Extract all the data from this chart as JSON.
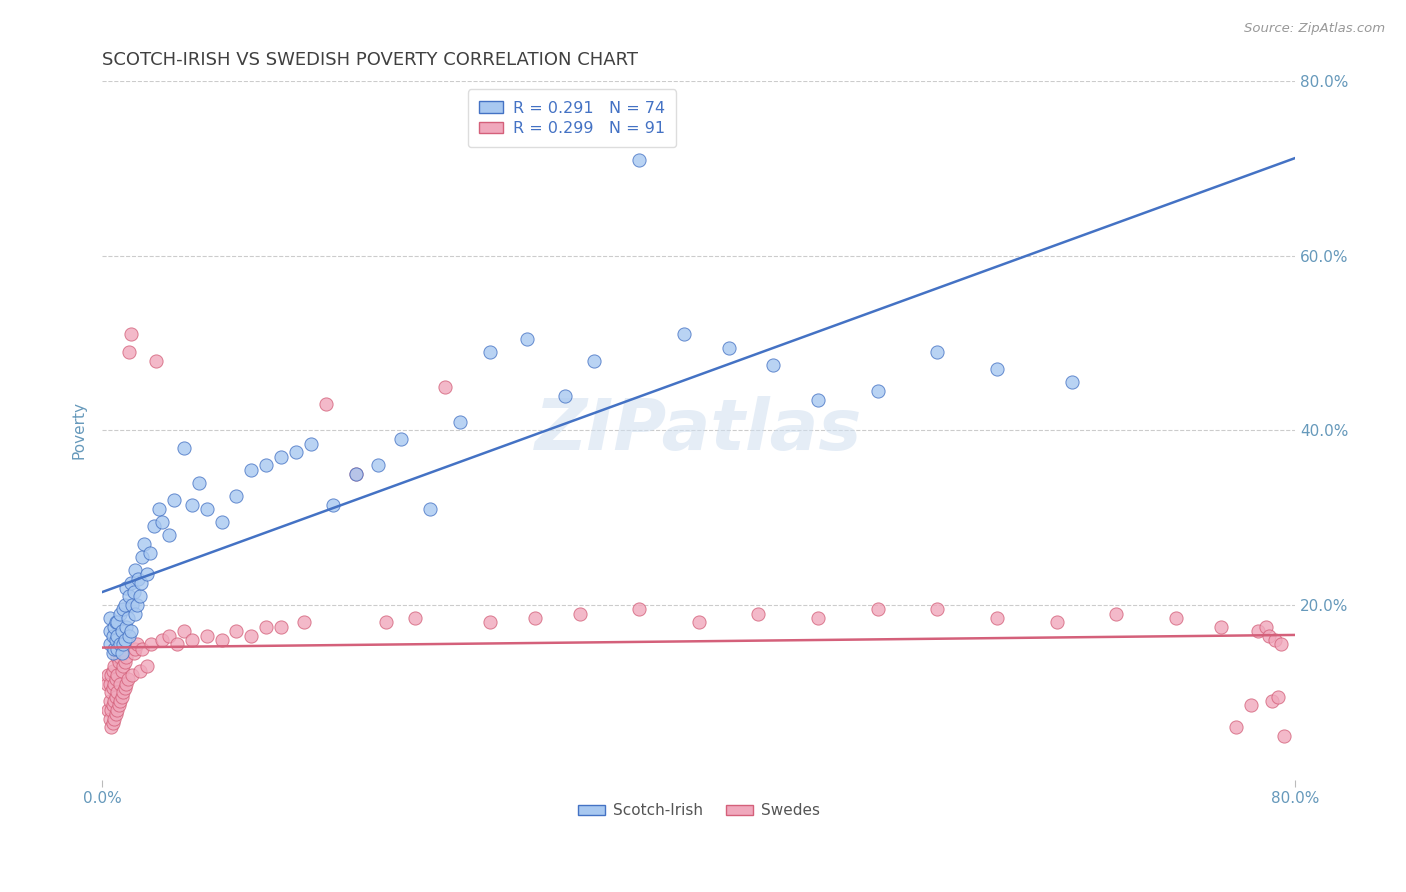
{
  "title": "SCOTCH-IRISH VS SWEDISH POVERTY CORRELATION CHART",
  "source_text": "Source: ZipAtlas.com",
  "ylabel": "Poverty",
  "xlim": [
    0.0,
    0.8
  ],
  "ylim": [
    0.0,
    0.8
  ],
  "ytick_positions": [
    0.2,
    0.4,
    0.6,
    0.8
  ],
  "legend_scotch_irish": "Scotch-Irish",
  "legend_swedes": "Swedes",
  "scotch_irish_color": "#a8c8f0",
  "swedish_color": "#f0a8bc",
  "scotch_irish_line_color": "#4472c4",
  "swedish_line_color": "#d4607a",
  "R_scotch": 0.291,
  "N_scotch": 74,
  "R_swedish": 0.299,
  "N_swedish": 91,
  "background_color": "#ffffff",
  "grid_color": "#cccccc",
  "title_color": "#404040",
  "axis_label_color": "#6699bb",
  "legend_text_color": "#4472c4",
  "scotch_irish_x": [
    0.005,
    0.005,
    0.005,
    0.007,
    0.007,
    0.008,
    0.008,
    0.009,
    0.009,
    0.01,
    0.01,
    0.01,
    0.012,
    0.012,
    0.013,
    0.013,
    0.014,
    0.014,
    0.015,
    0.015,
    0.016,
    0.016,
    0.017,
    0.018,
    0.018,
    0.019,
    0.019,
    0.02,
    0.021,
    0.022,
    0.022,
    0.023,
    0.024,
    0.025,
    0.026,
    0.027,
    0.028,
    0.03,
    0.032,
    0.035,
    0.038,
    0.04,
    0.045,
    0.048,
    0.055,
    0.06,
    0.065,
    0.07,
    0.08,
    0.09,
    0.1,
    0.11,
    0.12,
    0.13,
    0.14,
    0.155,
    0.17,
    0.185,
    0.2,
    0.22,
    0.24,
    0.26,
    0.285,
    0.31,
    0.33,
    0.36,
    0.39,
    0.42,
    0.45,
    0.48,
    0.52,
    0.56,
    0.6,
    0.65
  ],
  "scotch_irish_y": [
    0.155,
    0.17,
    0.185,
    0.145,
    0.165,
    0.15,
    0.175,
    0.16,
    0.18,
    0.15,
    0.165,
    0.18,
    0.155,
    0.19,
    0.145,
    0.17,
    0.155,
    0.195,
    0.16,
    0.2,
    0.175,
    0.22,
    0.185,
    0.165,
    0.21,
    0.17,
    0.225,
    0.2,
    0.215,
    0.19,
    0.24,
    0.2,
    0.23,
    0.21,
    0.225,
    0.255,
    0.27,
    0.235,
    0.26,
    0.29,
    0.31,
    0.295,
    0.28,
    0.32,
    0.38,
    0.315,
    0.34,
    0.31,
    0.295,
    0.325,
    0.355,
    0.36,
    0.37,
    0.375,
    0.385,
    0.315,
    0.35,
    0.36,
    0.39,
    0.31,
    0.41,
    0.49,
    0.505,
    0.44,
    0.48,
    0.71,
    0.51,
    0.495,
    0.475,
    0.435,
    0.445,
    0.49,
    0.47,
    0.455
  ],
  "swedish_x": [
    0.003,
    0.004,
    0.004,
    0.005,
    0.005,
    0.005,
    0.006,
    0.006,
    0.006,
    0.006,
    0.007,
    0.007,
    0.007,
    0.007,
    0.008,
    0.008,
    0.008,
    0.008,
    0.009,
    0.009,
    0.009,
    0.01,
    0.01,
    0.01,
    0.01,
    0.011,
    0.011,
    0.012,
    0.012,
    0.012,
    0.013,
    0.013,
    0.014,
    0.014,
    0.015,
    0.015,
    0.016,
    0.016,
    0.017,
    0.018,
    0.019,
    0.02,
    0.021,
    0.022,
    0.023,
    0.025,
    0.027,
    0.03,
    0.033,
    0.036,
    0.04,
    0.045,
    0.05,
    0.055,
    0.06,
    0.07,
    0.08,
    0.09,
    0.1,
    0.11,
    0.12,
    0.135,
    0.15,
    0.17,
    0.19,
    0.21,
    0.23,
    0.26,
    0.29,
    0.32,
    0.36,
    0.4,
    0.44,
    0.48,
    0.52,
    0.56,
    0.6,
    0.64,
    0.68,
    0.72,
    0.75,
    0.76,
    0.77,
    0.775,
    0.78,
    0.782,
    0.784,
    0.786,
    0.788,
    0.79,
    0.792
  ],
  "swedish_y": [
    0.11,
    0.08,
    0.12,
    0.07,
    0.09,
    0.11,
    0.06,
    0.08,
    0.1,
    0.12,
    0.065,
    0.085,
    0.105,
    0.125,
    0.07,
    0.09,
    0.11,
    0.13,
    0.075,
    0.095,
    0.115,
    0.08,
    0.1,
    0.12,
    0.14,
    0.085,
    0.135,
    0.09,
    0.11,
    0.14,
    0.095,
    0.125,
    0.1,
    0.13,
    0.105,
    0.135,
    0.11,
    0.14,
    0.115,
    0.49,
    0.51,
    0.12,
    0.145,
    0.15,
    0.155,
    0.125,
    0.15,
    0.13,
    0.155,
    0.48,
    0.16,
    0.165,
    0.155,
    0.17,
    0.16,
    0.165,
    0.16,
    0.17,
    0.165,
    0.175,
    0.175,
    0.18,
    0.43,
    0.35,
    0.18,
    0.185,
    0.45,
    0.18,
    0.185,
    0.19,
    0.195,
    0.18,
    0.19,
    0.185,
    0.195,
    0.195,
    0.185,
    0.18,
    0.19,
    0.185,
    0.175,
    0.06,
    0.085,
    0.17,
    0.175,
    0.165,
    0.09,
    0.16,
    0.095,
    0.155,
    0.05
  ]
}
